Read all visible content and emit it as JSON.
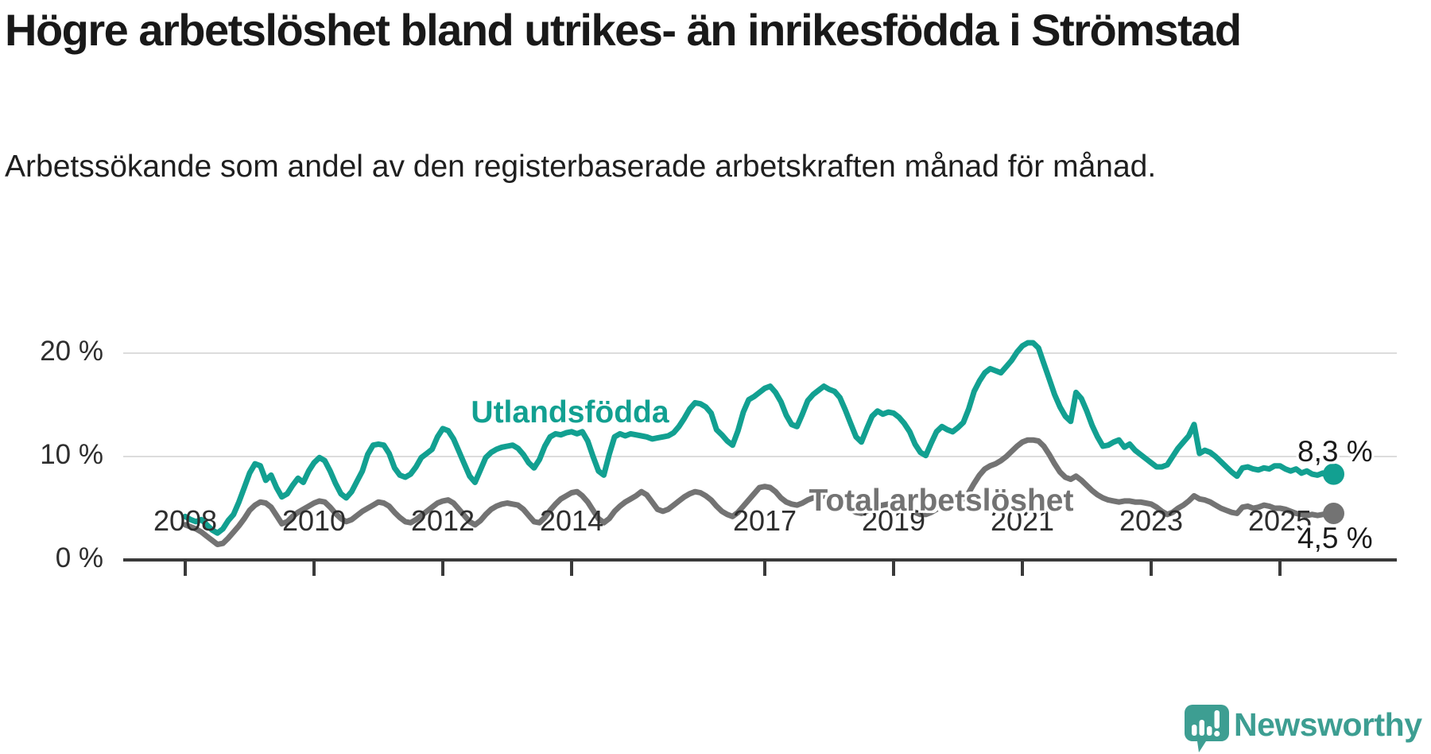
{
  "title": "Högre arbetslöshet bland utrikes- än inrikesfödda i Strömstad",
  "subtitle": "Arbetssökande som andel av den registerbaserade arbetskraften månad för månad.",
  "branding": {
    "logo_text": "Newsworthy",
    "logo_color": "#3d9e92"
  },
  "colors": {
    "teal_line": "#12a091",
    "gray_line": "#737373",
    "axis": "#3a3a3a",
    "grid": "#dcdcdc",
    "text": "#191919"
  },
  "chart_data": {
    "type": "line",
    "title": "Högre arbetslöshet bland utrikes- än inrikesfödda i Strömstad",
    "subtitle": "Arbetssökande som andel av den registerbaserade arbetskraften månad för månad.",
    "x_start": "2008-01",
    "x_end": "2025-11",
    "x_frequency": "monthly",
    "x_ticks": [
      2008,
      2010,
      2012,
      2014,
      2017,
      2019,
      2021,
      2023,
      2025
    ],
    "y_ticks": [
      {
        "value": 0,
        "label": "0 %"
      },
      {
        "value": 10,
        "label": "10 %"
      },
      {
        "value": 20,
        "label": "20 %"
      }
    ],
    "ylim": [
      0,
      22
    ],
    "grid": "horizontal-only",
    "legend_position": "inline-labels",
    "series": [
      {
        "name": "Utlandsfödda",
        "color": "#12a091",
        "end_label": "8,3 %",
        "end_value": 8.3,
        "values": [
          4.2,
          3.9,
          3.7,
          3.9,
          3.4,
          2.9,
          2.6,
          3.0,
          3.8,
          4.4,
          5.6,
          7.0,
          8.4,
          9.3,
          9.1,
          7.7,
          8.2,
          7.0,
          6.1,
          6.4,
          7.2,
          7.9,
          7.5,
          8.6,
          9.4,
          9.9,
          9.6,
          8.6,
          7.4,
          6.4,
          6.0,
          6.6,
          7.6,
          8.6,
          10.2,
          11.1,
          11.2,
          11.1,
          10.3,
          8.9,
          8.2,
          8.0,
          8.3,
          9.0,
          9.9,
          10.3,
          10.7,
          11.9,
          12.7,
          12.5,
          11.7,
          10.5,
          9.3,
          8.1,
          7.5,
          8.7,
          9.9,
          10.4,
          10.7,
          10.9,
          11.0,
          11.1,
          10.8,
          10.2,
          9.4,
          8.9,
          9.7,
          11.0,
          11.9,
          12.2,
          12.1,
          12.3,
          12.4,
          12.2,
          12.4,
          11.5,
          10.0,
          8.6,
          8.2,
          10.2,
          11.9,
          12.2,
          12.0,
          12.2,
          12.1,
          12.0,
          11.9,
          11.7,
          11.8,
          11.9,
          12.0,
          12.3,
          12.9,
          13.7,
          14.6,
          15.2,
          15.1,
          14.8,
          14.2,
          12.6,
          12.1,
          11.5,
          11.1,
          12.5,
          14.3,
          15.5,
          15.8,
          16.2,
          16.6,
          16.8,
          16.2,
          15.3,
          14.0,
          13.1,
          12.9,
          14.1,
          15.4,
          16.0,
          16.4,
          16.8,
          16.5,
          16.3,
          15.7,
          14.5,
          13.2,
          11.9,
          11.4,
          12.7,
          13.9,
          14.4,
          14.1,
          14.3,
          14.2,
          13.8,
          13.2,
          12.4,
          11.2,
          10.4,
          10.1,
          11.3,
          12.4,
          12.9,
          12.6,
          12.4,
          12.8,
          13.3,
          14.6,
          16.3,
          17.3,
          18.1,
          18.5,
          18.3,
          18.1,
          18.7,
          19.3,
          20.1,
          20.7,
          21.0,
          21.0,
          20.5,
          19.0,
          17.5,
          16.0,
          14.8,
          13.9,
          13.4,
          16.2,
          15.6,
          14.4,
          13.0,
          11.9,
          11.0,
          11.1,
          11.4,
          11.6,
          10.9,
          11.2,
          10.6,
          10.2,
          9.8,
          9.4,
          9.0,
          9.0,
          9.2,
          10.0,
          10.8,
          11.4,
          12.0,
          13.1,
          10.3,
          10.6,
          10.4,
          10.0,
          9.5,
          9.0,
          8.5,
          8.1,
          8.9,
          9.0,
          8.8,
          8.7,
          8.9,
          8.8,
          9.1,
          9.1,
          8.8,
          8.6,
          8.8,
          8.4,
          8.6,
          8.3,
          8.2,
          8.4,
          8.2,
          8.3
        ]
      },
      {
        "name": "Total arbetslöshet",
        "color": "#737373",
        "end_label": "4,5 %",
        "end_value": 4.5,
        "values": [
          3.4,
          3.2,
          3.0,
          2.7,
          2.3,
          1.9,
          1.5,
          1.6,
          2.1,
          2.7,
          3.3,
          4.0,
          4.8,
          5.3,
          5.6,
          5.5,
          5.1,
          4.3,
          3.5,
          3.7,
          4.2,
          4.6,
          4.9,
          5.2,
          5.5,
          5.7,
          5.6,
          5.1,
          4.5,
          4.0,
          3.7,
          3.9,
          4.3,
          4.7,
          5.0,
          5.3,
          5.6,
          5.5,
          5.2,
          4.6,
          4.1,
          3.7,
          3.6,
          3.9,
          4.3,
          4.7,
          5.1,
          5.5,
          5.7,
          5.8,
          5.5,
          4.9,
          4.3,
          3.7,
          3.4,
          3.8,
          4.4,
          4.9,
          5.2,
          5.4,
          5.5,
          5.4,
          5.3,
          4.9,
          4.3,
          3.7,
          3.6,
          4.1,
          4.8,
          5.4,
          5.9,
          6.2,
          6.5,
          6.6,
          6.2,
          5.6,
          4.8,
          4.0,
          3.6,
          4.0,
          4.7,
          5.2,
          5.6,
          5.9,
          6.2,
          6.6,
          6.3,
          5.6,
          4.9,
          4.7,
          4.9,
          5.3,
          5.7,
          6.1,
          6.4,
          6.6,
          6.5,
          6.2,
          5.8,
          5.2,
          4.7,
          4.4,
          4.2,
          4.6,
          5.2,
          5.8,
          6.4,
          7.0,
          7.1,
          7.0,
          6.6,
          6.0,
          5.6,
          5.4,
          5.3,
          5.5,
          5.8,
          6.0,
          6.1,
          6.2,
          6.2,
          6.1,
          5.8,
          5.3,
          4.9,
          4.6,
          4.5,
          4.7,
          5.0,
          5.2,
          5.3,
          5.4,
          5.5,
          5.4,
          5.2,
          4.9,
          4.6,
          4.4,
          4.4,
          4.6,
          4.9,
          5.1,
          5.3,
          5.5,
          5.7,
          5.9,
          6.5,
          7.4,
          8.2,
          8.8,
          9.1,
          9.3,
          9.6,
          10.0,
          10.5,
          11.0,
          11.4,
          11.6,
          11.6,
          11.5,
          11.0,
          10.2,
          9.3,
          8.5,
          8.0,
          7.8,
          8.1,
          7.7,
          7.2,
          6.7,
          6.3,
          6.0,
          5.8,
          5.7,
          5.6,
          5.7,
          5.7,
          5.6,
          5.6,
          5.5,
          5.4,
          5.1,
          4.7,
          4.4,
          4.6,
          5.0,
          5.3,
          5.7,
          6.2,
          5.9,
          5.8,
          5.6,
          5.3,
          5.0,
          4.8,
          4.6,
          4.5,
          5.1,
          5.2,
          5.0,
          5.1,
          5.3,
          5.2,
          5.0,
          5.0,
          4.9,
          4.7,
          4.5,
          4.4,
          4.3,
          4.4,
          4.3,
          4.4,
          4.4,
          4.5
        ]
      }
    ]
  }
}
